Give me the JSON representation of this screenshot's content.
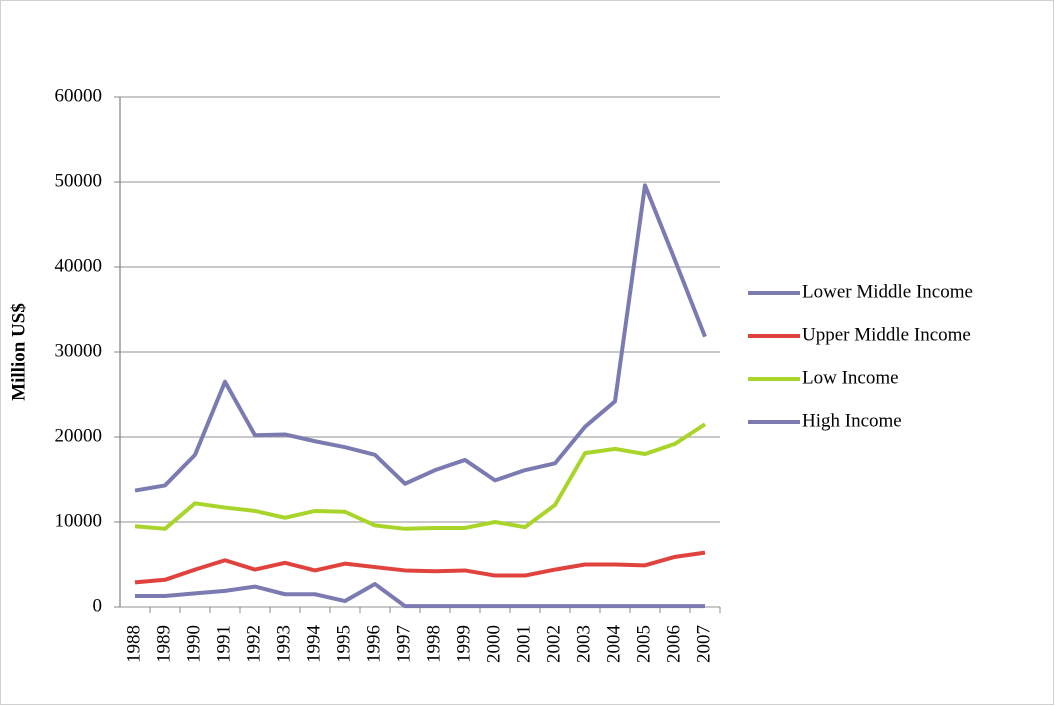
{
  "chart_data": {
    "type": "line",
    "y_label": "Million US$",
    "categories": [
      "1988",
      "1989",
      "1990",
      "1991",
      "1992",
      "1993",
      "1994",
      "1995",
      "1996",
      "1997",
      "1998",
      "1999",
      "2000",
      "2001",
      "2002",
      "2003",
      "2004",
      "2005",
      "2006",
      "2007"
    ],
    "series": [
      {
        "name": "Lower Middle Income",
        "color": "#7b7bb2",
        "values": [
          13700,
          14300,
          17900,
          26500,
          20200,
          20300,
          19500,
          18800,
          17900,
          14500,
          16100,
          17300,
          14900,
          16100,
          16900,
          21200,
          24200,
          49600,
          40800,
          31800
        ]
      },
      {
        "name": "Upper Middle Income",
        "color": "#e0433e",
        "values": [
          2900,
          3200,
          4400,
          5500,
          4400,
          5200,
          4300,
          5100,
          4700,
          4300,
          4200,
          4300,
          3700,
          3700,
          4400,
          5000,
          5000,
          4900,
          5900,
          6400
        ]
      },
      {
        "name": "Low Income",
        "color": "#a9d52b",
        "values": [
          9500,
          9200,
          12200,
          11700,
          11300,
          10500,
          11300,
          11200,
          9600,
          9200,
          9300,
          9300,
          10000,
          9400,
          12000,
          18100,
          18600,
          18000,
          19200,
          21500
        ]
      },
      {
        "name": "High Income",
        "color": "#7b7bb2",
        "values": [
          1300,
          1300,
          1600,
          1900,
          2400,
          1500,
          1500,
          700,
          2700,
          100,
          100,
          100,
          100,
          100,
          100,
          100,
          100,
          100,
          100,
          100
        ]
      }
    ],
    "ylim": [
      0,
      60000
    ],
    "yticks": [
      0,
      10000,
      20000,
      30000,
      40000,
      50000,
      60000
    ],
    "grid": true,
    "legend": "right"
  }
}
